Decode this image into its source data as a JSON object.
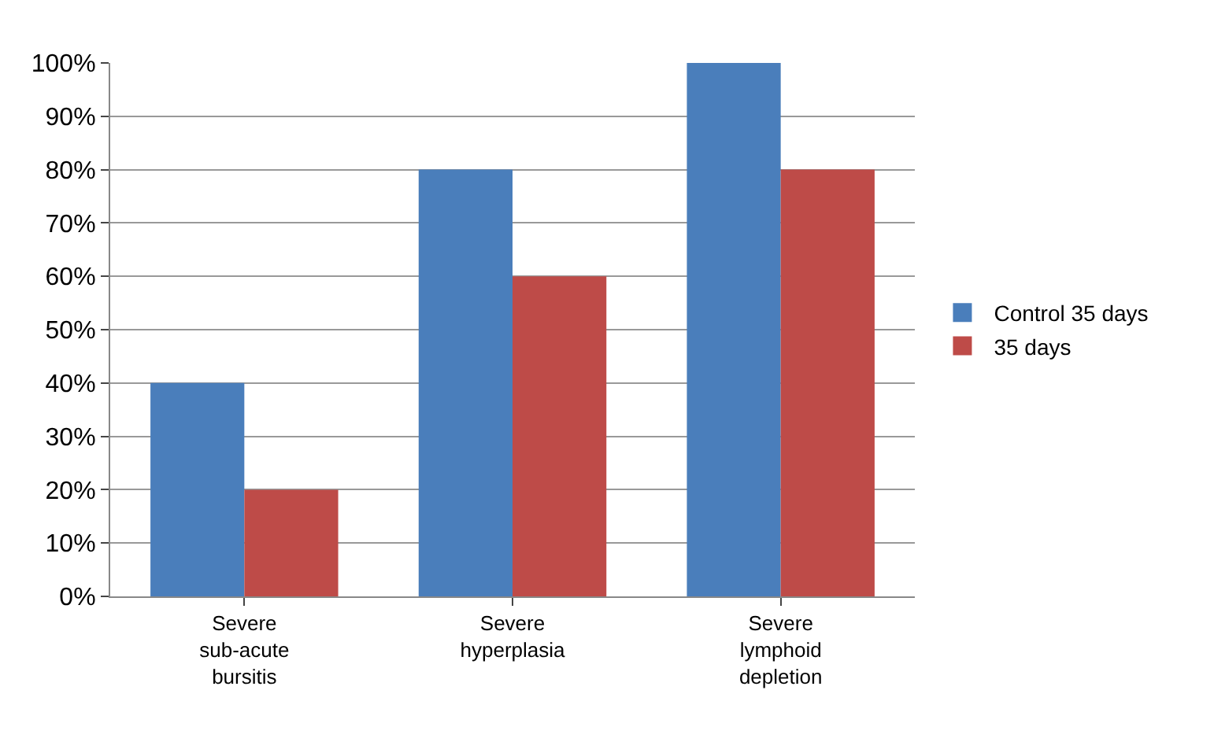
{
  "chart_data": {
    "type": "bar",
    "categories": [
      "Severe sub-acute bursitis",
      "Severe hyperplasia",
      "Severe lymphoid depletion"
    ],
    "series": [
      {
        "name": "Control 35 days",
        "color": "#4a7ebb",
        "values": [
          40,
          80,
          100
        ]
      },
      {
        "name": "35 days",
        "color": "#be4b48",
        "values": [
          20,
          60,
          80
        ]
      }
    ],
    "ylim": [
      0,
      100
    ],
    "yticks": [
      {
        "value": 0,
        "label": "0%"
      },
      {
        "value": 10,
        "label": "10%"
      },
      {
        "value": 20,
        "label": "20%"
      },
      {
        "value": 30,
        "label": "30%"
      },
      {
        "value": 40,
        "label": "40%"
      },
      {
        "value": 50,
        "label": "50%"
      },
      {
        "value": 60,
        "label": "60%"
      },
      {
        "value": 70,
        "label": "70%"
      },
      {
        "value": 80,
        "label": "80%"
      },
      {
        "value": 90,
        "label": "90%"
      },
      {
        "value": 100,
        "label": "100%"
      }
    ],
    "grid": "y",
    "legend": "right"
  }
}
